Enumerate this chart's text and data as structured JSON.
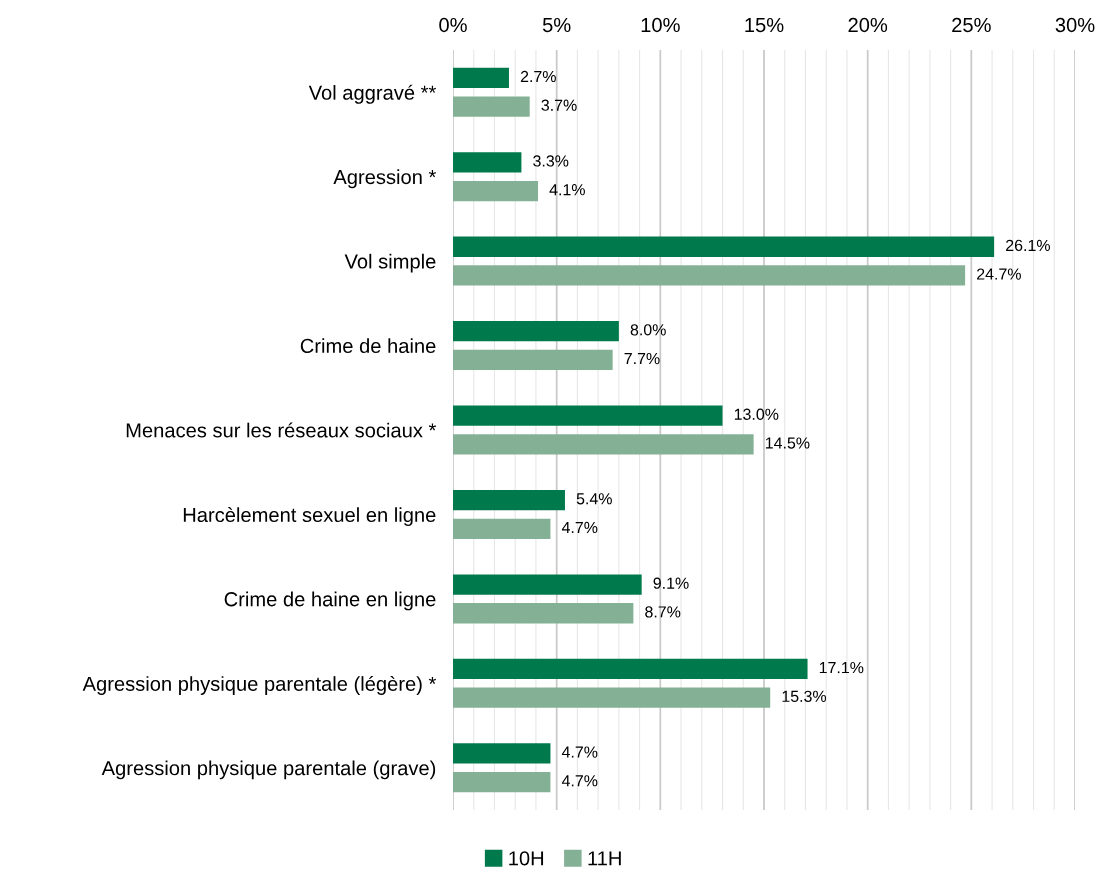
{
  "chart_data": {
    "type": "bar",
    "orientation": "horizontal",
    "categories": [
      "Vol aggravé **",
      "Agression *",
      "Vol simple",
      "Crime de haine",
      "Menaces sur les réseaux sociaux *",
      "Harcèlement sexuel en ligne",
      "Crime de haine en ligne",
      "Agression physique parentale (légère) *",
      "Agression physique parentale (grave)"
    ],
    "series": [
      {
        "name": "10H",
        "color": "#007a4d",
        "values": [
          2.7,
          3.3,
          26.1,
          8.0,
          13.0,
          5.4,
          9.1,
          17.1,
          4.7
        ],
        "value_labels": [
          "2.7%",
          "3.3%",
          "26.1%",
          "8.0%",
          "13.0%",
          "5.4%",
          "9.1%",
          "17.1%",
          "4.7%"
        ]
      },
      {
        "name": "11H",
        "color": "#84b096",
        "values": [
          3.7,
          4.1,
          24.7,
          7.7,
          14.5,
          4.7,
          8.7,
          15.3,
          4.7
        ],
        "value_labels": [
          "3.7%",
          "4.1%",
          "24.7%",
          "7.7%",
          "14.5%",
          "4.7%",
          "8.7%",
          "15.3%",
          "4.7%"
        ]
      }
    ],
    "xlim": [
      0,
      30
    ],
    "xticks": [
      {
        "value": 0,
        "label": "0%"
      },
      {
        "value": 5,
        "label": "5%"
      },
      {
        "value": 10,
        "label": "10%"
      },
      {
        "value": 15,
        "label": "15%"
      },
      {
        "value": 20,
        "label": "20%"
      },
      {
        "value": 25,
        "label": "25%"
      },
      {
        "value": 30,
        "label": "30%"
      }
    ],
    "grid": "x",
    "legend": "bottom"
  }
}
